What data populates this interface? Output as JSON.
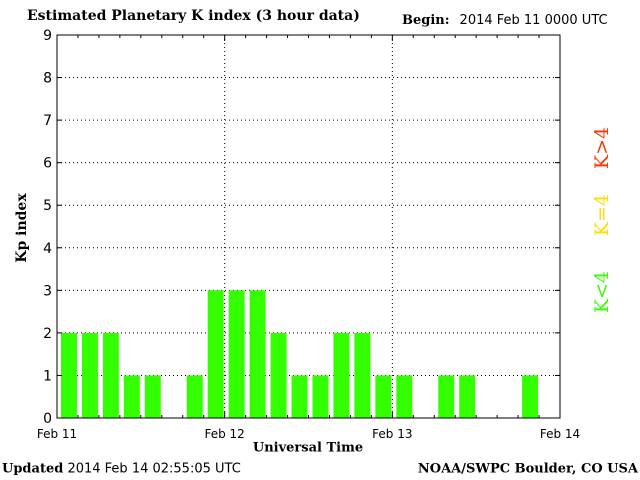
{
  "header": {
    "title": "Estimated Planetary K index (3 hour data)",
    "begin_label": "Begin:",
    "begin_value": "2014 Feb 11 0000 UTC"
  },
  "footer": {
    "updated_label": "Updated",
    "updated_value": "2014 Feb 14 02:55:05 UTC",
    "source": "NOAA/SWPC Boulder, CO USA"
  },
  "legend": [
    {
      "label": "K>4",
      "color": "#ff3300"
    },
    {
      "label": "K=4",
      "color": "#ffdd00"
    },
    {
      "label": "K<4",
      "color": "#33ff00"
    }
  ],
  "chart_data": {
    "type": "bar",
    "title": "Estimated Planetary K index (3 hour data)",
    "xlabel": "Universal Time",
    "ylabel": "Kp index",
    "ylim": [
      0,
      9
    ],
    "yticks": [
      0,
      1,
      2,
      3,
      4,
      5,
      6,
      7,
      8,
      9
    ],
    "xticks": [
      "Feb 11",
      "Feb 12",
      "Feb 13",
      "Feb 14"
    ],
    "bins_per_day": 8,
    "series": [
      {
        "values": [
          2,
          2,
          2,
          1,
          1,
          0,
          1,
          3,
          3,
          3,
          2,
          1,
          1,
          2,
          2,
          1,
          1,
          0,
          1,
          1,
          0,
          0,
          1,
          0
        ]
      }
    ],
    "bar_color": "#33ff00",
    "grid": true,
    "grid_style": "dotted"
  }
}
